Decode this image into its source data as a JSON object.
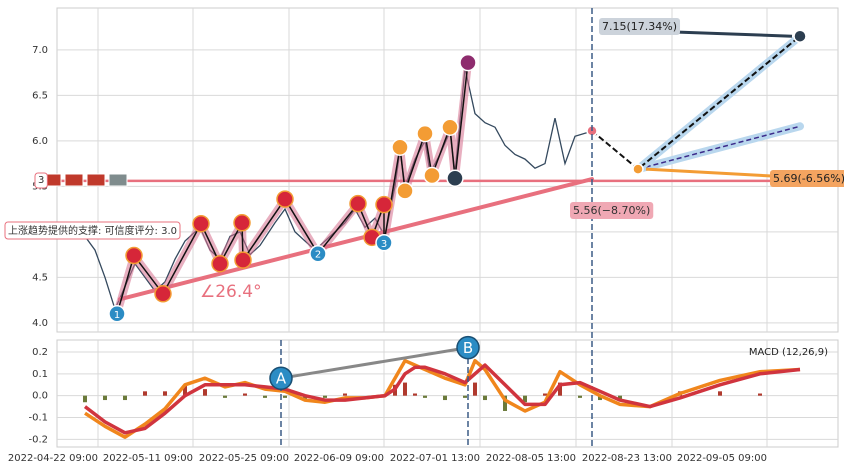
{
  "chart_data": [
    {
      "type": "line",
      "xlim": [
        -5.6,
        150.6
      ],
      "ylim": [
        3.9,
        7.46
      ],
      "yticks": [
        {
          "value": 4,
          "label": "4.0"
        },
        4.5,
        {
          "value": 5,
          "label": "5.0"
        },
        5.5,
        {
          "value": 6,
          "label": "6.0"
        },
        6.5,
        {
          "value": 7,
          "label": "7.0"
        }
      ],
      "grid": true,
      "color": "#34495e",
      "x": [
        0,
        2,
        4,
        6,
        8,
        10,
        12,
        14,
        16,
        18,
        20,
        23,
        25,
        27,
        29,
        31,
        33,
        35,
        38,
        40,
        42,
        44,
        46,
        48,
        50,
        52,
        54,
        56,
        58,
        60,
        62,
        63,
        64,
        66,
        68,
        69,
        71,
        73,
        74,
        76,
        78,
        80,
        82,
        84,
        86,
        88,
        90,
        92,
        94,
        96,
        98,
        101
      ],
      "values": [
        4.95,
        4.8,
        4.5,
        4.15,
        4.4,
        4.65,
        4.5,
        4.35,
        4.45,
        4.7,
        4.9,
        5.05,
        4.8,
        4.7,
        4.95,
        5.0,
        4.75,
        4.85,
        5.1,
        5.25,
        5.0,
        4.9,
        4.8,
        4.9,
        5.0,
        5.1,
        5.25,
        5.05,
        5.15,
        4.95,
        5.5,
        5.9,
        5.5,
        5.8,
        6.0,
        5.65,
        5.85,
        6.1,
        5.65,
        6.8,
        6.3,
        6.2,
        6.15,
        5.95,
        5.85,
        5.8,
        5.7,
        5.75,
        6.25,
        5.75,
        6.05,
        6.1
      ],
      "zigzag": {
        "x": [
          6.4,
          9.8,
          15.6,
          23.2,
          27,
          31.4,
          31.6,
          40,
          46.6,
          54.6,
          57.4,
          59.8,
          59.8,
          63,
          64,
          68,
          69.4,
          73,
          74,
          76.6
        ],
        "values": [
          4.1,
          4.74,
          4.32,
          5.09,
          4.65,
          5.1,
          4.69,
          5.36,
          4.76,
          5.31,
          4.94,
          5.3,
          4.88,
          5.93,
          5.45,
          6.08,
          5.62,
          6.15,
          5.59,
          6.86
        ],
        "labels": [
          "1",
          null,
          null,
          null,
          null,
          null,
          null,
          null,
          "2",
          null,
          null,
          null,
          "3",
          null,
          null,
          null,
          null,
          null,
          null,
          null
        ],
        "colors": [
          "#2b8cc4",
          "#d62639",
          "#d62639",
          "#d62639",
          "#d62639",
          "#d62639",
          "#d62639",
          "#d62639",
          "#2b8cc4",
          "#d62639",
          "#d62639",
          "#d62639",
          "#2b8cc4",
          "#f39c34",
          "#f39c34",
          "#f39c34",
          "#f39c34",
          "#f39c34",
          "#2c3e50",
          "#8e2c6e"
        ]
      },
      "support": {
        "x": [
          7,
          101.4
        ],
        "values": [
          4.26,
          5.58
        ],
        "color": "#e8707e"
      },
      "level": 5.56,
      "projection": {
        "x": [
          101.4,
          110.6,
          143
        ],
        "values": [
          6.11,
          5.69,
          7.15
        ]
      },
      "channel": {
        "x": [
          110.6,
          143
        ],
        "values": [
          5.69,
          6.16
        ]
      },
      "marker": 101.4,
      "annotations": [
        "7.15(17.34%)",
        "5.69(-6.56%)",
        "5.56(−8.70%)",
        "上涨趋势提供的支撑: 可信度评分: 3.0",
        "∠26.4°",
        "3"
      ]
    },
    {
      "type": "macd",
      "title": "MACD (12,26,9)",
      "xlim": [
        -5.6,
        150.6
      ],
      "ylim": [
        -0.235,
        0.255
      ],
      "yticks": [
        -0.2,
        -0.1,
        {
          "value": 0,
          "label": "0.0"
        },
        0.1,
        0.2
      ],
      "xticks": [
        {
          "value": 2.6,
          "label": "2022-04-22 09:00"
        },
        {
          "value": 21.6,
          "label": "2022-05-11 09:00"
        },
        {
          "value": 40.8,
          "label": "2022-05-25 09:00"
        },
        {
          "value": 59.8,
          "label": "2022-06-09 09:00"
        },
        {
          "value": 79,
          "label": "2022-07-01 13:00"
        },
        {
          "value": 98.2,
          "label": "2022-08-05 13:00"
        },
        {
          "value": 117.4,
          "label": "2022-08-23 13:00"
        },
        {
          "value": 136.4,
          "label": "2022-09-05 09:00"
        }
      ],
      "x": [
        0,
        4,
        8,
        12,
        16,
        20,
        24,
        28,
        32,
        36,
        40,
        44,
        48,
        52,
        56,
        60,
        62,
        64,
        66,
        68,
        72,
        76,
        78,
        80,
        84,
        88,
        92,
        95,
        99,
        103,
        107,
        113,
        119,
        127,
        135,
        143
      ],
      "series": [
        {
          "color": "#f0861c",
          "values": [
            -0.08,
            -0.14,
            -0.19,
            -0.13,
            -0.06,
            0.05,
            0.08,
            0.04,
            0.06,
            0.03,
            0.02,
            -0.02,
            -0.03,
            -0.01,
            -0.01,
            0.0,
            0.08,
            0.16,
            0.14,
            0.12,
            0.08,
            0.05,
            0.16,
            0.12,
            -0.02,
            -0.07,
            -0.03,
            0.11,
            0.05,
            0.0,
            -0.04,
            -0.05,
            0.01,
            0.07,
            0.11,
            0.12
          ]
        },
        {
          "color": "#d0343e",
          "values": [
            -0.05,
            -0.12,
            -0.17,
            -0.15,
            -0.08,
            0.0,
            0.05,
            0.05,
            0.05,
            0.04,
            0.03,
            0.0,
            -0.02,
            -0.02,
            -0.01,
            0.0,
            0.03,
            0.1,
            0.13,
            0.13,
            0.1,
            0.06,
            0.1,
            0.14,
            0.05,
            -0.04,
            -0.04,
            0.05,
            0.06,
            0.02,
            -0.02,
            -0.05,
            -0.01,
            0.05,
            0.1,
            0.12
          ]
        }
      ],
      "histogram": [
        -0.03,
        -0.02,
        -0.02,
        0.02,
        0.02,
        0.05,
        0.03,
        -0.01,
        0.01,
        -0.01,
        -0.01,
        -0.02,
        -0.01,
        0.01,
        0,
        0,
        0.05,
        0.06,
        0.01,
        -0.01,
        -0.02,
        -0.01,
        0.06,
        -0.02,
        -0.07,
        -0.03,
        0.01,
        0.06,
        -0.01,
        -0.02,
        -0.02,
        0,
        0.02,
        0.02,
        0.01,
        0
      ],
      "divergence": {
        "labels": [
          "A",
          "B"
        ],
        "x": [
          39.2,
          76.6
        ],
        "values": [
          0.08,
          0.22
        ]
      }
    }
  ]
}
